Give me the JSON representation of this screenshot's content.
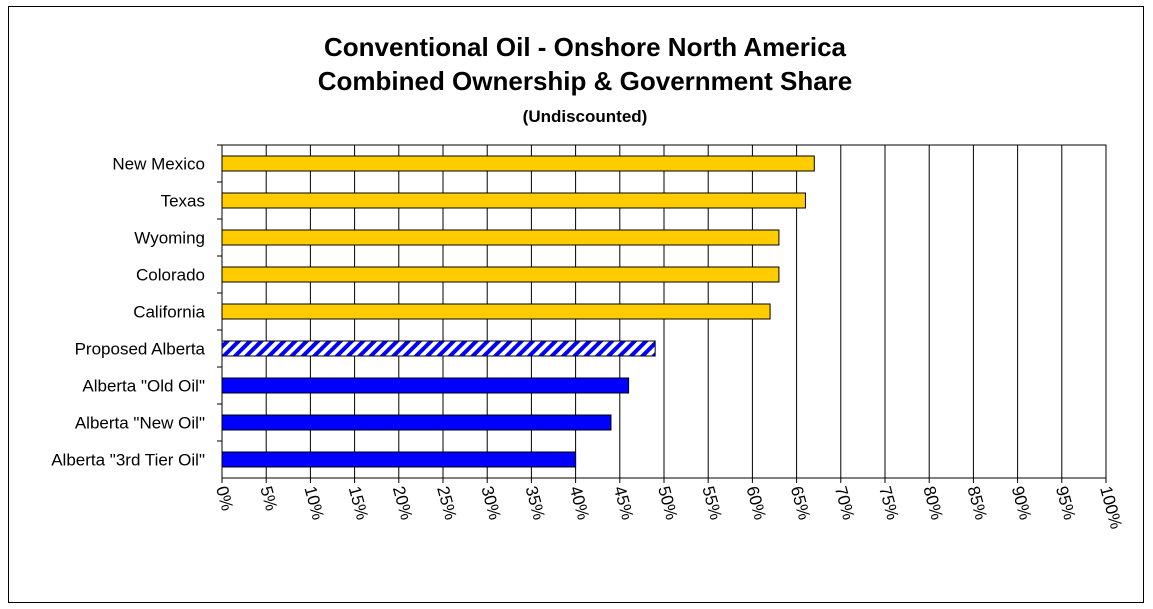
{
  "chart_data": {
    "type": "bar",
    "orientation": "horizontal",
    "title_lines": [
      "Conventional Oil - Onshore North America",
      "Combined Ownership & Government Share"
    ],
    "subtitle": "(Undiscounted)",
    "categories": [
      "New Mexico",
      "Texas",
      "Wyoming",
      "Colorado",
      "California",
      "Proposed Alberta",
      "Alberta \"Old Oil\"",
      "Alberta \"New Oil\"",
      "Alberta \"3rd Tier Oil\""
    ],
    "values": [
      67,
      66,
      63,
      63,
      62,
      49,
      46,
      44,
      40
    ],
    "bar_styles": [
      "us",
      "us",
      "us",
      "us",
      "us",
      "proposed",
      "alberta",
      "alberta",
      "alberta"
    ],
    "colors": {
      "us": "#FFCC00",
      "alberta": "#0000FF",
      "proposed_stripe": "#0000FF",
      "proposed_bg": "#FFFFFF",
      "gridline": "#000000"
    },
    "xlim": [
      0,
      100
    ],
    "x_ticks": [
      0,
      5,
      10,
      15,
      20,
      25,
      30,
      35,
      40,
      45,
      50,
      55,
      60,
      65,
      70,
      75,
      80,
      85,
      90,
      95,
      100
    ],
    "x_tick_labels": [
      "0%",
      "5%",
      "10%",
      "15%",
      "20%",
      "25%",
      "30%",
      "35%",
      "40%",
      "45%",
      "50%",
      "55%",
      "60%",
      "65%",
      "70%",
      "75%",
      "80%",
      "85%",
      "90%",
      "95%",
      "100%"
    ],
    "grid": "vertical",
    "xlabel": "",
    "ylabel": ""
  }
}
